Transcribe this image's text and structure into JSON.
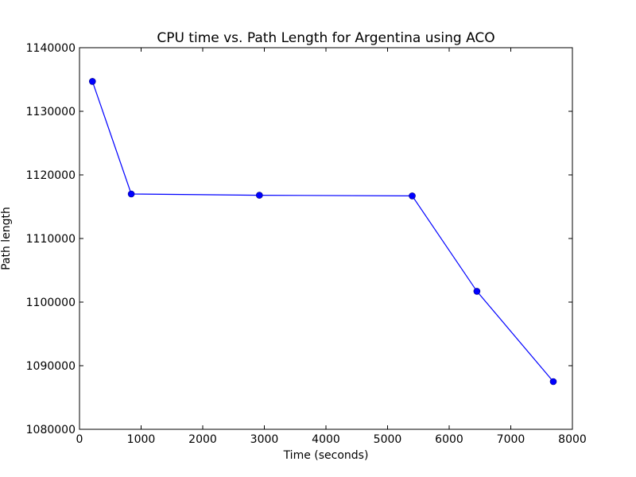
{
  "chart_data": {
    "type": "line",
    "title": "CPU time vs. Path Length for Argentina using ACO",
    "xlabel": "Time (seconds)",
    "ylabel": "Path length",
    "xlim": [
      0,
      8000
    ],
    "ylim": [
      1080000,
      1140000
    ],
    "xticks": [
      0,
      1000,
      2000,
      3000,
      4000,
      5000,
      6000,
      7000,
      8000
    ],
    "yticks": [
      1080000,
      1090000,
      1100000,
      1110000,
      1120000,
      1130000,
      1140000
    ],
    "grid": false,
    "series": [
      {
        "color": "#0000ff",
        "marker": "circle",
        "x": [
          210,
          840,
          2920,
          5400,
          6450,
          7690
        ],
        "y": [
          1134700,
          1117000,
          1116800,
          1116700,
          1101700,
          1087500
        ]
      }
    ]
  }
}
